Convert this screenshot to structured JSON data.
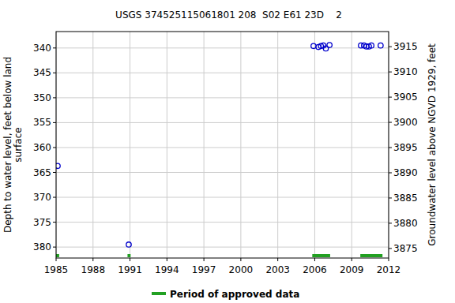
{
  "chart_data": {
    "type": "scatter",
    "title": "USGS 374525115061801 208  S02 E61 23D    2",
    "ylabel": [
      "Depth to water level, feet below land",
      "surface"
    ],
    "y2label": "Groundwater level above NGVD 1929, feet",
    "xlim": [
      1985,
      2012
    ],
    "xticks": [
      1985,
      1988,
      1991,
      1994,
      1997,
      2000,
      2003,
      2006,
      2009,
      2012
    ],
    "ylim": [
      382.2,
      336.7
    ],
    "yticks": [
      340,
      345,
      350,
      355,
      360,
      365,
      370,
      375,
      380
    ],
    "y2lim": [
      3873.1,
      3918.0
    ],
    "y2ticks": [
      3875,
      3880,
      3885,
      3890,
      3895,
      3900,
      3905,
      3910,
      3915
    ],
    "grid": true,
    "series": [
      {
        "color": "#0000cc",
        "marker": "open-circle",
        "x": [
          1985.13,
          1990.9,
          2005.9,
          2006.3,
          2006.5,
          2006.7,
          2006.9,
          2007.2,
          2009.75,
          2010.0,
          2010.2,
          2010.4,
          2010.6,
          2011.35
        ],
        "values": [
          363.7,
          379.5,
          339.6,
          339.8,
          339.6,
          339.5,
          340.1,
          339.4,
          339.5,
          339.5,
          339.7,
          339.7,
          339.5,
          339.5
        ]
      }
    ],
    "approved_periods": {
      "name": "Period of approved data",
      "color": "#22a022",
      "ranges": [
        [
          1985.0,
          1985.25
        ],
        [
          1990.8,
          1991.05
        ],
        [
          2005.8,
          2007.25
        ],
        [
          2009.7,
          2011.5
        ]
      ]
    }
  }
}
